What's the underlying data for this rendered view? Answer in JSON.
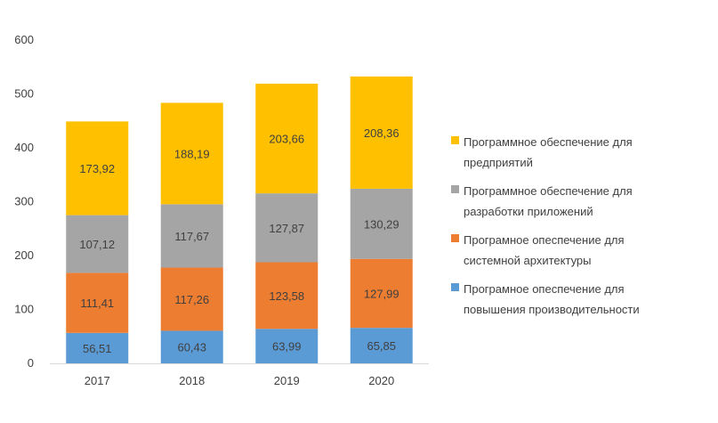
{
  "chart_data": {
    "type": "bar",
    "stacked": true,
    "title": "",
    "xlabel": "",
    "ylabel": "",
    "categories": [
      "2017",
      "2018",
      "2019",
      "2020"
    ],
    "ylim": [
      0,
      600
    ],
    "yticks": [
      "0",
      "100",
      "200",
      "300",
      "400",
      "500",
      "600"
    ],
    "grid": false,
    "legend_position": "right",
    "series": [
      {
        "name": "Програмное опеспечение для повышения производительности",
        "color": "#5B9BD5",
        "values": [
          56.51,
          60.43,
          63.99,
          65.85
        ],
        "labels": [
          "56,51",
          "60,43",
          "63,99",
          "65,85"
        ]
      },
      {
        "name": "Програмное опеспечение для системной архитектуры",
        "color": "#ED7D31",
        "values": [
          111.41,
          117.26,
          123.58,
          127.99
        ],
        "labels": [
          "111,41",
          "117,26",
          "123,58",
          "127,99"
        ]
      },
      {
        "name": "Программное обеспечение для разработки приложений",
        "color": "#A5A5A5",
        "values": [
          107.12,
          117.67,
          127.87,
          130.29
        ],
        "labels": [
          "107,12",
          "117,67",
          "127,87",
          "130,29"
        ]
      },
      {
        "name": "Программное обеспечение для предприятий",
        "color": "#FFC000",
        "values": [
          173.92,
          188.19,
          203.66,
          208.36
        ],
        "labels": [
          "173,92",
          "188,19",
          "203,66",
          "208,36"
        ]
      }
    ],
    "legend_order": [
      3,
      2,
      1,
      0
    ]
  }
}
